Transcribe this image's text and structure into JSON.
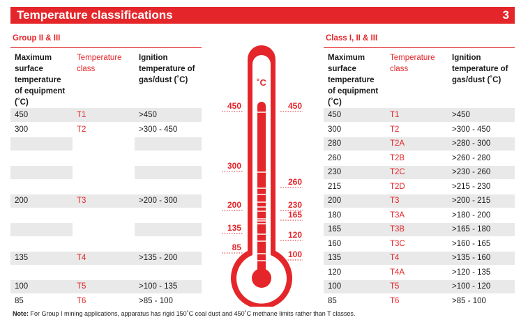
{
  "header": {
    "title": "Temperature classifications",
    "page_number": "3"
  },
  "left": {
    "title": "Group II & III",
    "headers": [
      "Maximum surface temperature of equipment (˚C)",
      "Temperature class",
      "Ignition temperature of gas/dust (˚C)"
    ],
    "rows": [
      [
        "450",
        "T1",
        ">450"
      ],
      [
        "300",
        "T2",
        ">300 - 450"
      ],
      [
        "",
        "",
        ""
      ],
      [
        "",
        "",
        ""
      ],
      [
        "",
        "",
        ""
      ],
      [
        "",
        "",
        ""
      ],
      [
        "200",
        "T3",
        ">200 - 300"
      ],
      [
        "",
        "",
        ""
      ],
      [
        "",
        "",
        ""
      ],
      [
        "",
        "",
        ""
      ],
      [
        "135",
        "T4",
        ">135 - 200"
      ],
      [
        "",
        "",
        ""
      ],
      [
        "100",
        "T5",
        ">100 - 135"
      ],
      [
        "85",
        "T6",
        ">85 - 100"
      ]
    ]
  },
  "right": {
    "title": "Class I, II & III",
    "headers": [
      "Maximum surface temperature of equipment (˚C)",
      "Temperature class",
      "Ignition temperature of gas/dust (˚C)"
    ],
    "rows": [
      [
        "450",
        "T1",
        ">450"
      ],
      [
        "300",
        "T2",
        ">300 - 450"
      ],
      [
        "280",
        "T2A",
        ">280 - 300"
      ],
      [
        "260",
        "T2B",
        ">260 - 280"
      ],
      [
        "230",
        "T2C",
        ">230 - 260"
      ],
      [
        "215",
        "T2D",
        ">215 - 230"
      ],
      [
        "200",
        "T3",
        ">200 - 215"
      ],
      [
        "180",
        "T3A",
        ">180 - 200"
      ],
      [
        "165",
        "T3B",
        ">165 - 180"
      ],
      [
        "160",
        "T3C",
        ">160 - 165"
      ],
      [
        "135",
        "T4",
        ">135 - 160"
      ],
      [
        "120",
        "T4A",
        ">120 - 135"
      ],
      [
        "100",
        "T5",
        ">100 - 120"
      ],
      [
        "85",
        "T6",
        ">85 - 100"
      ]
    ]
  },
  "thermometer": {
    "unit": "˚C",
    "left_labels": [
      "450",
      "300",
      "200",
      "135",
      "85"
    ],
    "right_labels": [
      "450",
      "260",
      "230",
      "165",
      "120",
      "100"
    ]
  },
  "note": {
    "label": "Note:",
    "text": " For Group I mining applications, apparatus has rigid 150˚C coal dust and 450˚C methane limits rather than T classes."
  },
  "colors": {
    "accent": "#e4262a",
    "shade": "#e9e9e9"
  }
}
